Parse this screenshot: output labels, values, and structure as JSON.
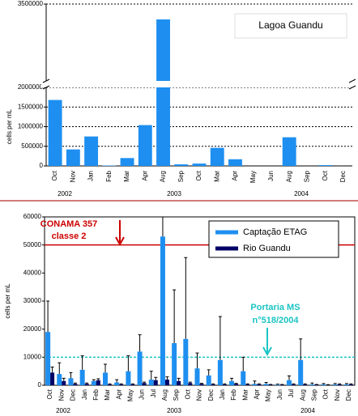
{
  "chart_data": [
    {
      "type": "bar",
      "title": "Lagoa Guandu",
      "y_label": "cells per mL",
      "categories": [
        "Oct",
        "Nov",
        "Jan",
        "Feb",
        "Mar",
        "Apr",
        "Aug",
        "Sep",
        "Oct",
        "Mar",
        "Apr",
        "May",
        "Jun",
        "Aug",
        "Sep",
        "Oct",
        "Dec"
      ],
      "years": [
        "2002",
        "2003",
        "2004"
      ],
      "values": [
        1680000,
        420000,
        750000,
        10000,
        200000,
        1040000,
        3400000,
        40000,
        60000,
        460000,
        170000,
        null,
        null,
        730000,
        null,
        20000,
        null
      ],
      "color": "#1e8ff0",
      "ylim": [
        0,
        3500000
      ],
      "ybreak": [
        2000000,
        3000000
      ],
      "yticks": [
        0,
        500000,
        1000000,
        1500000,
        2000000,
        3500000
      ],
      "grid": true
    },
    {
      "type": "bar",
      "y_label": "cells per mL",
      "categories": [
        "Oct",
        "Nov",
        "Dec",
        "Jan",
        "Feb",
        "Mar",
        "Apr",
        "May",
        "Jun",
        "Jul",
        "Aug",
        "Sep",
        "Oct",
        "Nov",
        "Dec",
        "Jan",
        "Feb",
        "Mar",
        "Apr",
        "May",
        "Jun",
        "Jul",
        "Aug",
        "Sep",
        "Oct",
        "Nov",
        "Dec"
      ],
      "years": [
        "2002",
        "2003",
        "2004"
      ],
      "series": [
        {
          "name": "Captação ETAG",
          "color": "#1e8ff0",
          "values": [
            19000,
            4000,
            2500,
            5500,
            1500,
            4500,
            1000,
            5000,
            12000,
            2000,
            53000,
            15000,
            16500,
            6000,
            3500,
            9000,
            1500,
            5000,
            500,
            500,
            200,
            1800,
            9000,
            300,
            300,
            300,
            300
          ],
          "errors": [
            11000,
            4000,
            2000,
            5000,
            500,
            3000,
            1000,
            5500,
            6000,
            3000,
            7000,
            19000,
            29000,
            5500,
            2000,
            15500,
            1000,
            5000,
            1000,
            500,
            200,
            1500,
            7500,
            500,
            300,
            300,
            300
          ]
        },
        {
          "name": "Rio Guandu",
          "color": "#000066",
          "values": [
            4500,
            1500,
            500,
            500,
            1800,
            300,
            300,
            300,
            800,
            1800,
            2000,
            1500,
            800,
            500,
            300,
            300,
            500,
            300,
            300,
            200,
            200,
            300,
            300,
            200,
            100,
            300,
            300
          ],
          "errors": [
            2000,
            1000,
            300,
            300,
            500,
            200,
            200,
            200,
            300,
            1000,
            1000,
            1000,
            300,
            200,
            200,
            200,
            200,
            200,
            200,
            100,
            100,
            200,
            200,
            100,
            100,
            200,
            200
          ]
        }
      ],
      "reference_lines": [
        {
          "value": 50000,
          "label": [
            "CONAMA 357",
            "classe 2"
          ],
          "color": "#cc0000"
        },
        {
          "value": 10000,
          "label": [
            "Portaria MS",
            "n°518/2004"
          ],
          "color": "#1bc4c4"
        }
      ],
      "ylim": [
        0,
        60000
      ],
      "yticks": [
        0,
        10000,
        20000,
        30000,
        40000,
        50000,
        60000
      ]
    }
  ]
}
